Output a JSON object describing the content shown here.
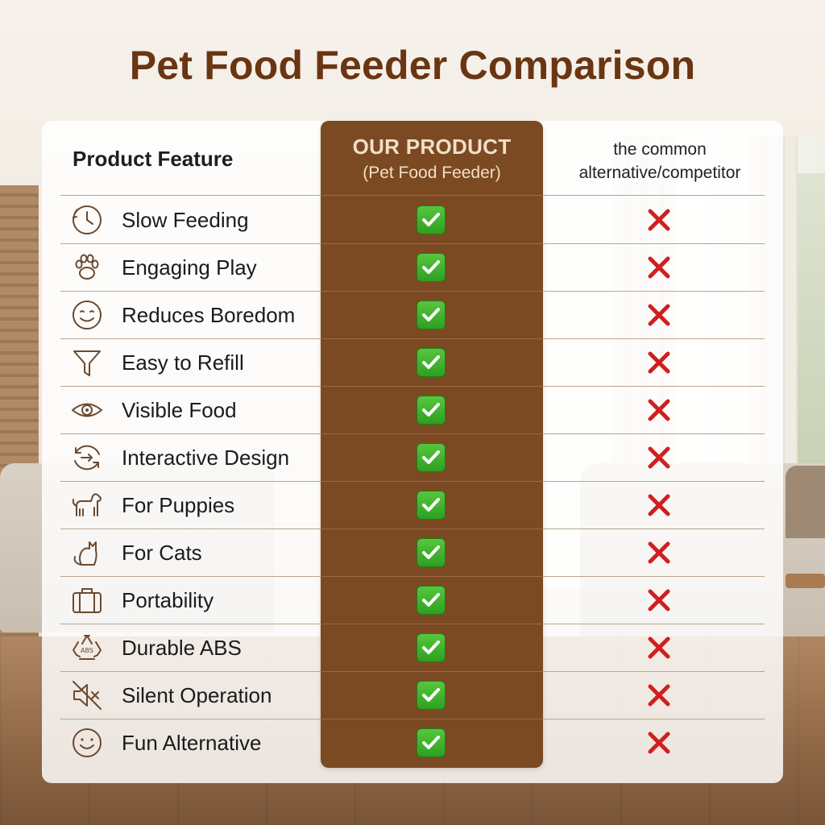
{
  "title": "Pet Food Feeder Comparison",
  "header": {
    "feature_col": "Product Feature",
    "our_product_line1": "OUR PRODUCT",
    "our_product_line2": "(Pet Food Feeder)",
    "competitor_line1": "the common",
    "competitor_line2": "alternative/competitor"
  },
  "colors": {
    "title": "#6a3512",
    "our_column": "#7b4a22",
    "check": "#2e9f22",
    "cross": "#d01f1f"
  },
  "rows": [
    {
      "icon": "clock-icon",
      "label": "Slow Feeding",
      "ours": "check",
      "competitor": "cross"
    },
    {
      "icon": "paw-icon",
      "label": "Engaging Play",
      "ours": "check",
      "competitor": "cross"
    },
    {
      "icon": "smiley-icon",
      "label": "Reduces Boredom",
      "ours": "check",
      "competitor": "cross"
    },
    {
      "icon": "funnel-icon",
      "label": "Easy to Refill",
      "ours": "check",
      "competitor": "cross"
    },
    {
      "icon": "eye-icon",
      "label": "Visible Food",
      "ours": "check",
      "competitor": "cross"
    },
    {
      "icon": "interactive-arrow-icon",
      "label": "Interactive Design",
      "ours": "check",
      "competitor": "cross"
    },
    {
      "icon": "dog-icon",
      "label": "For Puppies",
      "ours": "check",
      "competitor": "cross"
    },
    {
      "icon": "cat-icon",
      "label": "For Cats",
      "ours": "check",
      "competitor": "cross"
    },
    {
      "icon": "suitcase-icon",
      "label": "Portability",
      "ours": "check",
      "competitor": "cross"
    },
    {
      "icon": "recycle-abs-icon",
      "label": "Durable ABS",
      "ours": "check",
      "competitor": "cross"
    },
    {
      "icon": "mute-speaker-icon",
      "label": "Silent Operation",
      "ours": "check",
      "competitor": "cross"
    },
    {
      "icon": "happy-face-icon",
      "label": "Fun Alternative",
      "ours": "check",
      "competitor": "cross"
    }
  ],
  "abs_badge_text": "ABS"
}
